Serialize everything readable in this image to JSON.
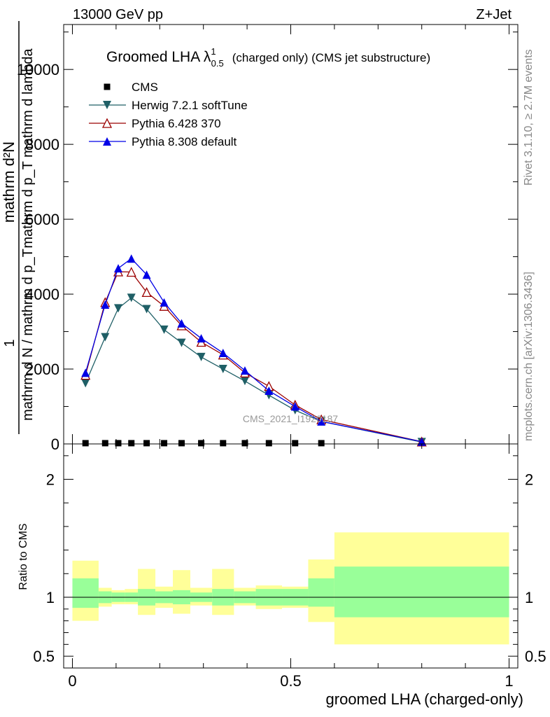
{
  "header": {
    "left": "13000 GeV pp",
    "right": "Z+Jet"
  },
  "side_labels": {
    "rivet": "Rivet 3.1.10, ≥ 2.7M events",
    "mcplots": "mcplots.cern.ch [arXiv:1306.3436]"
  },
  "watermark": "CMS_2021_I1920187",
  "chart_data": [
    {
      "type": "line",
      "title_main": "Groomed LHA λ",
      "title_sup": "1",
      "title_sub": "0.5",
      "title_rest": "(charged only) (CMS jet substructure)",
      "ylabel_top": "mathrm d²N",
      "ylabel_top_den": "mathrm d p_T mathrm d lambda",
      "ylabel_one": "1",
      "ylabel_bottom": "mathrm d N / mathrm d p_T",
      "ylim": [
        0,
        11200
      ],
      "yticks": [
        0,
        2000,
        4000,
        6000,
        8000,
        10000
      ],
      "ytick_labels": [
        "0",
        "2000",
        "4000",
        "6000",
        "8000",
        "10000"
      ],
      "xlim": [
        -0.02,
        1.02
      ],
      "x": [
        0.03,
        0.075,
        0.105,
        0.135,
        0.17,
        0.21,
        0.25,
        0.295,
        0.345,
        0.395,
        0.45,
        0.51,
        0.57,
        0.8
      ],
      "legend_placement": "top-left",
      "series": [
        {
          "name": "CMS",
          "color": "#000000",
          "marker": "square",
          "values": [
            20,
            20,
            20,
            20,
            20,
            20,
            20,
            20,
            20,
            20,
            20,
            20,
            20,
            null
          ]
        },
        {
          "name": "Herwig 7.2.1 softTune",
          "color": "#1f5f66",
          "marker": "triangle-down",
          "values": [
            1620,
            2850,
            3620,
            3900,
            3600,
            3050,
            2700,
            2320,
            2000,
            1680,
            1300,
            900,
            600,
            50
          ]
        },
        {
          "name": "Pythia 6.428 370",
          "color": "#9b0000",
          "marker": "triangle-up-open",
          "values": [
            1840,
            3780,
            4600,
            4590,
            4050,
            3680,
            3160,
            2720,
            2380,
            1900,
            1540,
            1040,
            650,
            60
          ]
        },
        {
          "name": "Pythia 8.308 default",
          "color": "#0000e6",
          "marker": "triangle-up",
          "values": [
            1900,
            3720,
            4690,
            4950,
            4520,
            3780,
            3220,
            2820,
            2430,
            1960,
            1420,
            1000,
            600,
            60
          ]
        }
      ]
    },
    {
      "type": "area",
      "ylabel": "Ratio to CMS",
      "xlabel": "groomed LHA (charged-only)",
      "ylim": [
        0.4,
        2.3
      ],
      "yticks": [
        0.5,
        1,
        2
      ],
      "ytick_labels": [
        "0.5",
        "1",
        "2"
      ],
      "xlim": [
        -0.02,
        1.02
      ],
      "xticks": [
        0,
        0.5,
        1
      ],
      "xtick_labels": [
        "0",
        "0.5",
        "1"
      ],
      "bin_edges": [
        0.0,
        0.06,
        0.09,
        0.12,
        0.15,
        0.19,
        0.23,
        0.27,
        0.32,
        0.37,
        0.42,
        0.48,
        0.54,
        0.6,
        1.0
      ],
      "stat_band": {
        "color": "#99ff99",
        "low": [
          0.91,
          0.95,
          0.96,
          0.96,
          0.93,
          0.95,
          0.94,
          0.96,
          0.93,
          0.95,
          0.93,
          0.93,
          0.92,
          0.83
        ],
        "high": [
          1.16,
          1.05,
          1.04,
          1.04,
          1.07,
          1.05,
          1.06,
          1.04,
          1.07,
          1.05,
          1.07,
          1.07,
          1.16,
          1.26
        ]
      },
      "syst_band": {
        "color": "#ffff99",
        "low": [
          0.8,
          0.92,
          0.94,
          0.94,
          0.85,
          0.91,
          0.86,
          0.93,
          0.85,
          0.93,
          0.9,
          0.91,
          0.79,
          0.6
        ],
        "high": [
          1.31,
          1.08,
          1.06,
          1.07,
          1.24,
          1.09,
          1.23,
          1.08,
          1.24,
          1.08,
          1.1,
          1.09,
          1.32,
          1.55
        ]
      }
    }
  ]
}
